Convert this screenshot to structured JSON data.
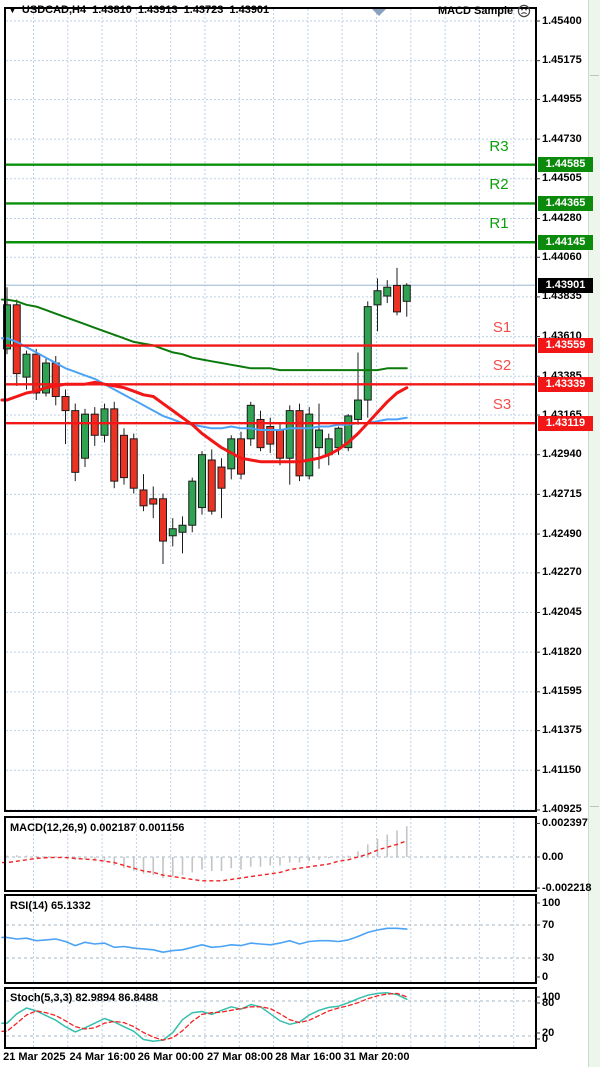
{
  "header": {
    "symbol": "USDCAD,H4",
    "open": "1.43810",
    "high": "1.43913",
    "low": "1.43723",
    "close": "1.43901",
    "indicator_label": "MACD Sample"
  },
  "price_axis": {
    "ticks": [
      "1.45400",
      "1.45175",
      "1.44955",
      "1.44730",
      "1.44505",
      "1.44280",
      "1.44060",
      "1.43835",
      "1.43610",
      "1.43385",
      "1.43165",
      "1.42940",
      "1.42715",
      "1.42490",
      "1.42270",
      "1.42045",
      "1.41820",
      "1.41595",
      "1.41375",
      "1.41150",
      "1.40925"
    ]
  },
  "levels": {
    "resistance": [
      {
        "name": "R3",
        "price": 1.44585,
        "label": "1.44585"
      },
      {
        "name": "R2",
        "price": 1.44365,
        "label": "1.44365"
      },
      {
        "name": "R1",
        "price": 1.44145,
        "label": "1.44145"
      }
    ],
    "support": [
      {
        "name": "S1",
        "price": 1.43559,
        "label": "1.43559"
      },
      {
        "name": "S2",
        "price": 1.43339,
        "label": "1.43339"
      },
      {
        "name": "S3",
        "price": 1.43119,
        "label": "1.43119"
      }
    ],
    "current": {
      "price": 1.43901,
      "label": "1.43901"
    }
  },
  "time_axis": {
    "labels": [
      {
        "text": "21 Mar 2025",
        "candle_index": 2.8
      },
      {
        "text": "24 Mar 16:00",
        "candle_index": 9.8
      },
      {
        "text": "26 Mar 00:00",
        "candle_index": 16.8
      },
      {
        "text": "27 Mar 08:00",
        "candle_index": 23.9
      },
      {
        "text": "28 Mar 16:00",
        "candle_index": 30.9
      },
      {
        "text": "31 Mar 20:00",
        "candle_index": 37.9
      }
    ]
  },
  "panels": {
    "macd": {
      "title": "MACD(12,26,9)",
      "main_value": "0.002187",
      "signal_value": "0.001156",
      "axis": [
        "0.002397",
        "0.00",
        "-0.002218"
      ]
    },
    "rsi": {
      "title": "RSI(14)",
      "value": "65.1332",
      "axis": [
        "100",
        "70",
        "30",
        "0"
      ]
    },
    "stoch": {
      "title": "Stoch(5,3,3)",
      "value_k": "82.9894",
      "value_d": "86.8488",
      "axis": [
        "100",
        "80",
        "20",
        "0"
      ]
    }
  },
  "colors": {
    "bull": "#2FA351",
    "bear": "#EC3323",
    "candle_outline": "#1c1c1c",
    "ma_green": "#0B7A0B",
    "ma_blue": "#4CA3F5",
    "ma_red": "#F21616",
    "level_resistance": "#0B900B",
    "level_support": "#F21616",
    "label_resistance": "#0AA00A",
    "label_support": "#F34C4C",
    "grid": "#BCD2E8",
    "indicator_level": "#A6B4C6",
    "histogram": "#C4C4C4",
    "rsi_line": "#4CA3F5",
    "stoch_k": "#35BFAC",
    "signal_red": "#F22222",
    "price_line": "#ABC3DA",
    "badge_resistance": "#0B8A0B",
    "badge_support": "#F21616",
    "badge_current": "#000000"
  },
  "chart_data": {
    "type": "candlestick",
    "title": "USDCAD H4 chart with pivot levels, MACD, RSI and Stochastic",
    "symbol": "USDCAD",
    "timeframe": "H4",
    "y_axis": {
      "top": 1.45475,
      "bottom": 1.40836,
      "tick_count": 21
    },
    "ohlc": [
      [
        1.4354,
        1.4389,
        1.4351,
        1.4379
      ],
      [
        1.4379,
        1.4382,
        1.4333,
        1.434
      ],
      [
        1.4338,
        1.4353,
        1.4331,
        1.4351
      ],
      [
        1.4351,
        1.4354,
        1.4325,
        1.4329
      ],
      [
        1.4329,
        1.4349,
        1.4327,
        1.4346
      ],
      [
        1.4346,
        1.435,
        1.4322,
        1.4327
      ],
      [
        1.4327,
        1.4331,
        1.43,
        1.4319
      ],
      [
        1.4319,
        1.4323,
        1.4279,
        1.4284
      ],
      [
        1.4292,
        1.432,
        1.4287,
        1.4317
      ],
      [
        1.4317,
        1.4321,
        1.4299,
        1.4305
      ],
      [
        1.4305,
        1.4323,
        1.4301,
        1.432
      ],
      [
        1.432,
        1.4324,
        1.4275,
        1.4279
      ],
      [
        1.4305,
        1.4309,
        1.4277,
        1.4281
      ],
      [
        1.4303,
        1.4306,
        1.4272,
        1.4275
      ],
      [
        1.4274,
        1.4283,
        1.4262,
        1.4265
      ],
      [
        1.4269,
        1.4276,
        1.4258,
        1.4266
      ],
      [
        1.4269,
        1.4272,
        1.4232,
        1.4245
      ],
      [
        1.4248,
        1.4258,
        1.4242,
        1.4252
      ],
      [
        1.425,
        1.4259,
        1.4238,
        1.4254
      ],
      [
        1.4254,
        1.4281,
        1.425,
        1.4279
      ],
      [
        1.4264,
        1.4296,
        1.426,
        1.4294
      ],
      [
        1.4291,
        1.4297,
        1.426,
        1.4262
      ],
      [
        1.4287,
        1.4292,
        1.4258,
        1.4275
      ],
      [
        1.4286,
        1.4305,
        1.428,
        1.4303
      ],
      [
        1.4303,
        1.4307,
        1.428,
        1.4283
      ],
      [
        1.4303,
        1.4324,
        1.4299,
        1.4322
      ],
      [
        1.4314,
        1.4319,
        1.4296,
        1.4298
      ],
      [
        1.431,
        1.4315,
        1.4295,
        1.43
      ],
      [
        1.4308,
        1.4312,
        1.4288,
        1.4292
      ],
      [
        1.4292,
        1.4322,
        1.4277,
        1.4319
      ],
      [
        1.4319,
        1.4323,
        1.4279,
        1.4282
      ],
      [
        1.4282,
        1.4321,
        1.428,
        1.4317
      ],
      [
        1.4298,
        1.4323,
        1.4286,
        1.4308
      ],
      [
        1.4294,
        1.4306,
        1.4288,
        1.4303
      ],
      [
        1.4298,
        1.431,
        1.4294,
        1.4309
      ],
      [
        1.4298,
        1.4317,
        1.4296,
        1.4316
      ],
      [
        1.4314,
        1.4352,
        1.4311,
        1.4325
      ],
      [
        1.4325,
        1.4381,
        1.4315,
        1.4378
      ],
      [
        1.4379,
        1.4394,
        1.4364,
        1.4387
      ],
      [
        1.4384,
        1.4393,
        1.438,
        1.4389
      ],
      [
        1.439,
        1.44,
        1.4373,
        1.4375
      ],
      [
        1.4381,
        1.43913,
        1.43723,
        1.43901
      ]
    ],
    "ma_green": [
      1.4382,
      1.4381,
      1.4379,
      1.4378,
      1.4376,
      1.4374,
      1.4372,
      1.437,
      1.4368,
      1.4366,
      1.4364,
      1.4362,
      1.436,
      1.4358,
      1.4357,
      1.4356,
      1.4354,
      1.4352,
      1.4351,
      1.4349,
      1.4348,
      1.4347,
      1.4346,
      1.4345,
      1.4344,
      1.4343,
      1.4343,
      1.4343,
      1.4342,
      1.4342,
      1.4342,
      1.4342,
      1.4342,
      1.4342,
      1.4342,
      1.4342,
      1.4342,
      1.4342,
      1.4342,
      1.4343,
      1.4343,
      1.4343
    ],
    "ma_blue": [
      1.436,
      1.4358,
      1.4355,
      1.4352,
      1.4349,
      1.4346,
      1.4343,
      1.4341,
      1.4339,
      1.4337,
      1.4334,
      1.4331,
      1.4328,
      1.4325,
      1.4322,
      1.4319,
      1.4316,
      1.4314,
      1.4312,
      1.4311,
      1.431,
      1.4309,
      1.4309,
      1.431,
      1.4309,
      1.4309,
      1.4308,
      1.4308,
      1.4308,
      1.4309,
      1.4309,
      1.4309,
      1.431,
      1.431,
      1.4311,
      1.4311,
      1.4312,
      1.4312,
      1.4313,
      1.4314,
      1.4314,
      1.4315
    ],
    "ma_red": [
      1.4325,
      1.4327,
      1.4329,
      1.433,
      1.4332,
      1.4333,
      1.4334,
      1.4334,
      1.4334,
      1.4335,
      1.4334,
      1.4333,
      1.4332,
      1.433,
      1.4328,
      1.4327,
      1.4323,
      1.4319,
      1.4315,
      1.4311,
      1.4306,
      1.4302,
      1.4298,
      1.4295,
      1.4292,
      1.4291,
      1.429,
      1.429,
      1.429,
      1.429,
      1.429,
      1.4291,
      1.4292,
      1.4294,
      1.4297,
      1.4301,
      1.4306,
      1.4312,
      1.4318,
      1.4324,
      1.4329,
      1.4332
    ],
    "macd_histogram": [
      0.0001,
      0.00012,
      0.0001,
      8e-05,
      5e-05,
      2e-05,
      -5e-05,
      -0.0002,
      -0.00015,
      -0.0002,
      -0.0003,
      -0.0006,
      -0.0008,
      -0.001,
      -0.0012,
      -0.0013,
      -0.0015,
      -0.0014,
      -0.0013,
      -0.0011,
      -0.0009,
      -0.001,
      -0.001,
      -0.0008,
      -0.0009,
      -0.0007,
      -0.0007,
      -0.0006,
      -0.0006,
      -0.0004,
      -0.0004,
      -0.0003,
      -0.0002,
      -0.0001,
      0.0,
      0.0001,
      0.0004,
      0.0009,
      0.0013,
      0.0016,
      0.0019,
      0.0022
    ],
    "macd_signal": [
      -0.0004,
      -0.0003,
      -0.0002,
      -0.0001,
      -5e-05,
      -3e-05,
      -4e-05,
      -0.0001,
      -0.00015,
      -0.0002,
      -0.0003,
      -0.0004,
      -0.0006,
      -0.0008,
      -0.001,
      -0.0011,
      -0.0013,
      -0.0014,
      -0.0015,
      -0.0016,
      -0.0017,
      -0.0017,
      -0.0017,
      -0.0016,
      -0.0015,
      -0.0014,
      -0.0013,
      -0.0012,
      -0.0011,
      -0.0009,
      -0.0008,
      -0.0007,
      -0.0006,
      -0.0005,
      -0.0003,
      -0.0002,
      0.0,
      0.0002,
      0.0005,
      0.0007,
      0.0009,
      0.00116
    ],
    "rsi_values": [
      55,
      53,
      54,
      51,
      52,
      53,
      50,
      45,
      49,
      47,
      48,
      43,
      44,
      42,
      41,
      40,
      37,
      39,
      40,
      43,
      46,
      43,
      44,
      46,
      45,
      48,
      47,
      46,
      48,
      51,
      47,
      50,
      51,
      51,
      50,
      52,
      56,
      61,
      64,
      66,
      66,
      65
    ],
    "stoch_k": [
      42,
      58,
      68,
      63,
      55,
      47,
      36,
      27,
      34,
      42,
      50,
      44,
      36,
      28,
      14,
      11,
      13,
      26,
      48,
      60,
      62,
      57,
      64,
      70,
      66,
      74,
      70,
      58,
      46,
      40,
      44,
      56,
      64,
      69,
      71,
      77,
      84,
      90,
      93,
      94,
      91,
      83
    ],
    "stoch_d": [
      28,
      42,
      56,
      63,
      60,
      55,
      46,
      36,
      32,
      34,
      42,
      45,
      43,
      36,
      26,
      18,
      13,
      17,
      29,
      45,
      57,
      60,
      61,
      64,
      67,
      70,
      70,
      67,
      58,
      48,
      43,
      47,
      55,
      63,
      68,
      72,
      77,
      84,
      89,
      92,
      93,
      87
    ]
  }
}
